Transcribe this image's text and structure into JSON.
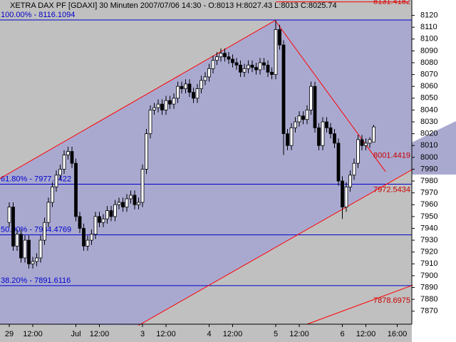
{
  "chart_data": {
    "type": "candlestick",
    "title": "XETRA DAX PF [GDAXI]  30 Minuten 2007/07/06 14:30 - O:8013 H:8027.43 L:8013 C:8025.74",
    "categories": [
      "29",
      null,
      null,
      null,
      null,
      null,
      "12:00",
      null,
      null,
      null,
      null,
      null,
      null,
      null,
      null,
      null,
      null,
      "Jul",
      null,
      null,
      null,
      null,
      null,
      "12:00",
      null,
      null,
      null,
      null,
      null,
      null,
      null,
      null,
      null,
      null,
      "3",
      null,
      null,
      null,
      null,
      null,
      "12:00",
      null,
      null,
      null,
      null,
      null,
      null,
      null,
      null,
      null,
      null,
      "4",
      null,
      null,
      null,
      null,
      null,
      "12:00",
      null,
      null,
      null,
      null,
      null,
      null,
      null,
      null,
      null,
      null,
      "5",
      null,
      null,
      null,
      null,
      null,
      "12:00",
      null,
      null,
      null,
      null,
      null,
      null,
      null,
      null,
      null,
      null,
      "6",
      null,
      null,
      null,
      null,
      null,
      "12:00",
      null,
      null,
      null,
      null,
      null,
      null,
      null,
      "16:00",
      null,
      null
    ],
    "open": [
      7945,
      7958,
      7925,
      7935,
      7915,
      7930,
      7910,
      7912,
      7915,
      7930,
      7945,
      7962,
      7975,
      7985,
      7990,
      8002,
      8005,
      7995,
      7950,
      7940,
      7925,
      7930,
      7935,
      7950,
      7945,
      7948,
      7955,
      7950,
      7960,
      7962,
      7958,
      7965,
      7968,
      7960,
      7962,
      7990,
      8020,
      8040,
      8042,
      8045,
      8040,
      8048,
      8045,
      8050,
      8060,
      8058,
      8062,
      8055,
      8050,
      8058,
      8065,
      8068,
      8075,
      8082,
      8085,
      8088,
      8085,
      8083,
      8080,
      8078,
      8072,
      8075,
      8078,
      8076,
      8074,
      8080,
      8078,
      8072,
      8070,
      8108,
      8095,
      8020,
      8010,
      8025,
      8030,
      8035,
      8032,
      8040,
      8060,
      8025,
      8010,
      8030,
      8025,
      8020,
      8012,
      7980,
      7958,
      7975,
      7985,
      7995,
      8015,
      8010,
      8012,
      8013,
      null,
      null,
      null,
      null,
      null,
      null,
      null,
      null
    ],
    "high": [
      7962,
      7962,
      7939,
      7939,
      7934,
      7934,
      7916,
      7919,
      7934,
      7949,
      7966,
      7979,
      7989,
      7994,
      8006,
      8009,
      8009,
      7999,
      7954,
      7944,
      7934,
      7939,
      7954,
      7954,
      7952,
      7959,
      7959,
      7964,
      7966,
      7966,
      7969,
      7972,
      7972,
      7966,
      7994,
      8024,
      8044,
      8046,
      8049,
      8049,
      8052,
      8052,
      8054,
      8064,
      8064,
      8066,
      8066,
      8059,
      8062,
      8069,
      8072,
      8079,
      8086,
      8089,
      8092,
      8092,
      8089,
      8087,
      8084,
      8082,
      8079,
      8082,
      8082,
      8080,
      8084,
      8084,
      8082,
      8076,
      8116,
      8112,
      8099,
      8024,
      8029,
      8034,
      8039,
      8039,
      8044,
      8064,
      8064,
      8029,
      8034,
      8034,
      8029,
      8024,
      8016,
      7984,
      7979,
      7989,
      7999,
      8019,
      8019,
      8016,
      8017,
      8027.43,
      null,
      null,
      null,
      null,
      null,
      null,
      null,
      null
    ],
    "low": [
      7941,
      7921,
      7921,
      7911,
      7911,
      7906,
      7906,
      7908,
      7911,
      7926,
      7941,
      7958,
      7971,
      7981,
      7986,
      7998,
      7991,
      7946,
      7936,
      7921,
      7921,
      7926,
      7931,
      7941,
      7941,
      7944,
      7946,
      7946,
      7956,
      7954,
      7954,
      7961,
      7956,
      7956,
      7958,
      7986,
      8016,
      8036,
      8038,
      8036,
      8036,
      8041,
      8041,
      8046,
      8054,
      8054,
      8051,
      8046,
      8046,
      8054,
      8061,
      8064,
      8071,
      8078,
      8081,
      8081,
      8079,
      8076,
      8074,
      8068,
      8068,
      8071,
      8072,
      8070,
      8070,
      8074,
      8068,
      8066,
      8066,
      8091,
      8002,
      8006,
      8006,
      8021,
      8026,
      8028,
      8028,
      8036,
      8021,
      8006,
      8006,
      8021,
      8016,
      8008,
      7976,
      7948,
      7954,
      7971,
      7981,
      7991,
      8006,
      8006,
      8008,
      8013,
      null,
      null,
      null,
      null,
      null,
      null,
      null,
      null
    ],
    "close": [
      7958,
      7925,
      7935,
      7915,
      7930,
      7910,
      7912,
      7915,
      7930,
      7945,
      7962,
      7975,
      7985,
      7990,
      8002,
      8005,
      7995,
      7950,
      7940,
      7925,
      7930,
      7935,
      7950,
      7945,
      7948,
      7955,
      7950,
      7960,
      7962,
      7958,
      7965,
      7968,
      7960,
      7962,
      7990,
      8020,
      8040,
      8042,
      8045,
      8040,
      8048,
      8045,
      8050,
      8060,
      8058,
      8062,
      8055,
      8050,
      8058,
      8065,
      8068,
      8075,
      8082,
      8085,
      8088,
      8085,
      8083,
      8080,
      8078,
      8072,
      8075,
      8078,
      8076,
      8074,
      8080,
      8078,
      8072,
      8070,
      8108,
      8095,
      8020,
      8010,
      8025,
      8030,
      8035,
      8032,
      8040,
      8060,
      8025,
      8010,
      8030,
      8025,
      8020,
      8012,
      7980,
      7958,
      7975,
      7985,
      7995,
      8015,
      8010,
      8012,
      8015,
      8025.74,
      null,
      null,
      null,
      null,
      null,
      null,
      null,
      null
    ],
    "up_color": "#ffffff",
    "down_color": "#000000",
    "ylim": [
      7859,
      8133
    ],
    "yticks": [
      7870,
      7880,
      7890,
      7900,
      7910,
      7920,
      7930,
      7940,
      7950,
      7960,
      7970,
      7980,
      7990,
      8000,
      8010,
      8020,
      8030,
      8040,
      8050,
      8060,
      8070,
      8080,
      8090,
      8100,
      8110,
      8120
    ],
    "fib_levels": [
      {
        "label": "100.00% - 8116.1094",
        "value": 8116.1094
      },
      {
        "label": "61.80% - 7977.3422",
        "value": 7977.3422
      },
      {
        "label": "50.00% - 7934.4769",
        "value": 7934.4769
      },
      {
        "label": "38.20% - 7891.6116",
        "value": 7891.6116
      }
    ],
    "fib_color": "#0000cc",
    "trendlines": [
      {
        "start": [
          68,
          8131.4182
        ],
        "end": [
          102,
          8131.4182
        ],
        "value": 8131.4182
      },
      {
        "start": [
          68,
          8115
        ],
        "end": [
          96,
          7988
        ],
        "value": 8001.4419
      },
      {
        "start": [
          33,
          7858
        ],
        "end": [
          103,
          7990
        ],
        "value": 7972.5434
      },
      {
        "start": [
          76,
          7859
        ],
        "end": [
          103,
          7892
        ],
        "value": 7878.6975
      }
    ],
    "channel": {
      "start": [
        -3,
        7981
      ],
      "end": [
        68,
        8116
      ]
    },
    "trend_color": "#ff0000"
  }
}
